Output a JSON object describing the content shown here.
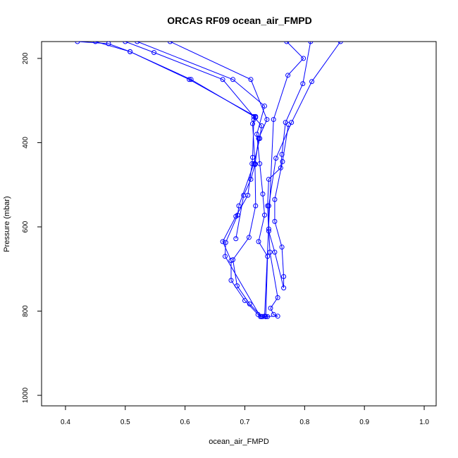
{
  "chart_data": {
    "type": "line",
    "title": "ORCAS RF09 ocean_air_FMPD",
    "xlabel": "ocean_air_FMPD",
    "ylabel": "Pressure (mbar)",
    "xlim": [
      0.36,
      1.02
    ],
    "ylim": [
      1025,
      160
    ],
    "y_reversed": true,
    "x_ticks": [
      "0.4",
      "0.5",
      "0.6",
      "0.7",
      "0.8",
      "0.9",
      "1.0"
    ],
    "y_ticks": [
      "200",
      "400",
      "600",
      "800",
      "1000"
    ],
    "grid": false,
    "legend": "none",
    "line_color": "#0000ff",
    "marker": "open-circle",
    "series": [
      {
        "points": [
          [
            0.42,
            160
          ],
          [
            0.472,
            165
          ],
          [
            0.508,
            184
          ],
          [
            0.607,
            250
          ],
          [
            0.718,
            338
          ],
          [
            0.715,
            345
          ],
          [
            0.713,
            435
          ],
          [
            0.712,
            450
          ],
          [
            0.705,
            525
          ],
          [
            0.685,
            575
          ],
          [
            0.663,
            635
          ],
          [
            0.677,
            680
          ],
          [
            0.677,
            727
          ],
          [
            0.7,
            775
          ],
          [
            0.722,
            808
          ],
          [
            0.728,
            813
          ],
          [
            0.735,
            813
          ]
        ]
      },
      {
        "points": [
          [
            0.45,
            160
          ],
          [
            0.508,
            184
          ],
          [
            0.61,
            250
          ],
          [
            0.718,
            340
          ],
          [
            0.713,
            355
          ],
          [
            0.717,
            450
          ],
          [
            0.718,
            550
          ],
          [
            0.707,
            625
          ],
          [
            0.68,
            678
          ],
          [
            0.687,
            740
          ],
          [
            0.708,
            783
          ],
          [
            0.728,
            813
          ],
          [
            0.73,
            813
          ]
        ]
      },
      {
        "points": [
          [
            0.5,
            160
          ],
          [
            0.548,
            186
          ],
          [
            0.663,
            250
          ],
          [
            0.715,
            338
          ],
          [
            0.728,
            360
          ],
          [
            0.725,
            390
          ],
          [
            0.715,
            450
          ],
          [
            0.69,
            550
          ],
          [
            0.688,
            572
          ],
          [
            0.668,
            637
          ],
          [
            0.667,
            670
          ],
          [
            0.726,
            813
          ],
          [
            0.738,
            813
          ]
        ]
      },
      {
        "points": [
          [
            0.52,
            160
          ],
          [
            0.68,
            250
          ],
          [
            0.733,
            313
          ],
          [
            0.72,
            380
          ],
          [
            0.725,
            450
          ],
          [
            0.73,
            522
          ],
          [
            0.733,
            572
          ],
          [
            0.723,
            635
          ],
          [
            0.738,
            670
          ],
          [
            0.735,
            813
          ]
        ]
      },
      {
        "points": [
          [
            0.575,
            160
          ],
          [
            0.71,
            250
          ],
          [
            0.737,
            345
          ],
          [
            0.723,
            390
          ],
          [
            0.717,
            452
          ],
          [
            0.71,
            487
          ],
          [
            0.698,
            525
          ],
          [
            0.685,
            628
          ]
        ]
      },
      {
        "points": [
          [
            0.86,
            160
          ],
          [
            0.812,
            255
          ],
          [
            0.778,
            352
          ],
          [
            0.752,
            437
          ],
          [
            0.74,
            550
          ],
          [
            0.74,
            605
          ],
          [
            0.742,
            660
          ],
          [
            0.755,
            768
          ],
          [
            0.743,
            793
          ],
          [
            0.748,
            808
          ],
          [
            0.755,
            812
          ],
          [
            0.735,
            813
          ]
        ]
      },
      {
        "points": [
          [
            0.81,
            160
          ],
          [
            0.797,
            260
          ],
          [
            0.768,
            352
          ],
          [
            0.762,
            428
          ],
          [
            0.76,
            460
          ],
          [
            0.74,
            487
          ],
          [
            0.738,
            550
          ],
          [
            0.74,
            610
          ],
          [
            0.75,
            660
          ],
          [
            0.765,
            745
          ],
          [
            0.765,
            718
          ],
          [
            0.762,
            648
          ],
          [
            0.75,
            587
          ],
          [
            0.75,
            535
          ],
          [
            0.763,
            445
          ],
          [
            0.773,
            357
          ]
        ]
      },
      {
        "points": [
          [
            0.77,
            160
          ],
          [
            0.798,
            200
          ],
          [
            0.772,
            240
          ],
          [
            0.748,
            345
          ],
          [
            0.733,
            812
          ]
        ]
      }
    ]
  }
}
